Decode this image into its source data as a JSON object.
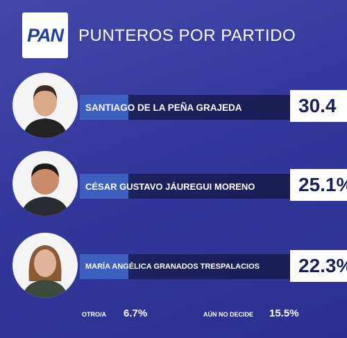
{
  "header": {
    "logo": "PAN",
    "title": "PUNTEROS POR PARTIDO"
  },
  "candidates": [
    {
      "name": "SANTIAGO DE LA PEÑA GRAJEDA",
      "value": "30.4"
    },
    {
      "name": "CÉSAR GUSTAVO JÁUREGUI MORENO",
      "value": "25.1%"
    },
    {
      "name": "MARÍA ANGÉLICA GRANADOS TRESPALACIOS",
      "value": "22.3%"
    }
  ],
  "footer": {
    "other_label": "OTRO/A",
    "other_value": "6.7%",
    "undecided_label": "AÚN NO DECIDE",
    "undecided_value": "15.5%"
  }
}
